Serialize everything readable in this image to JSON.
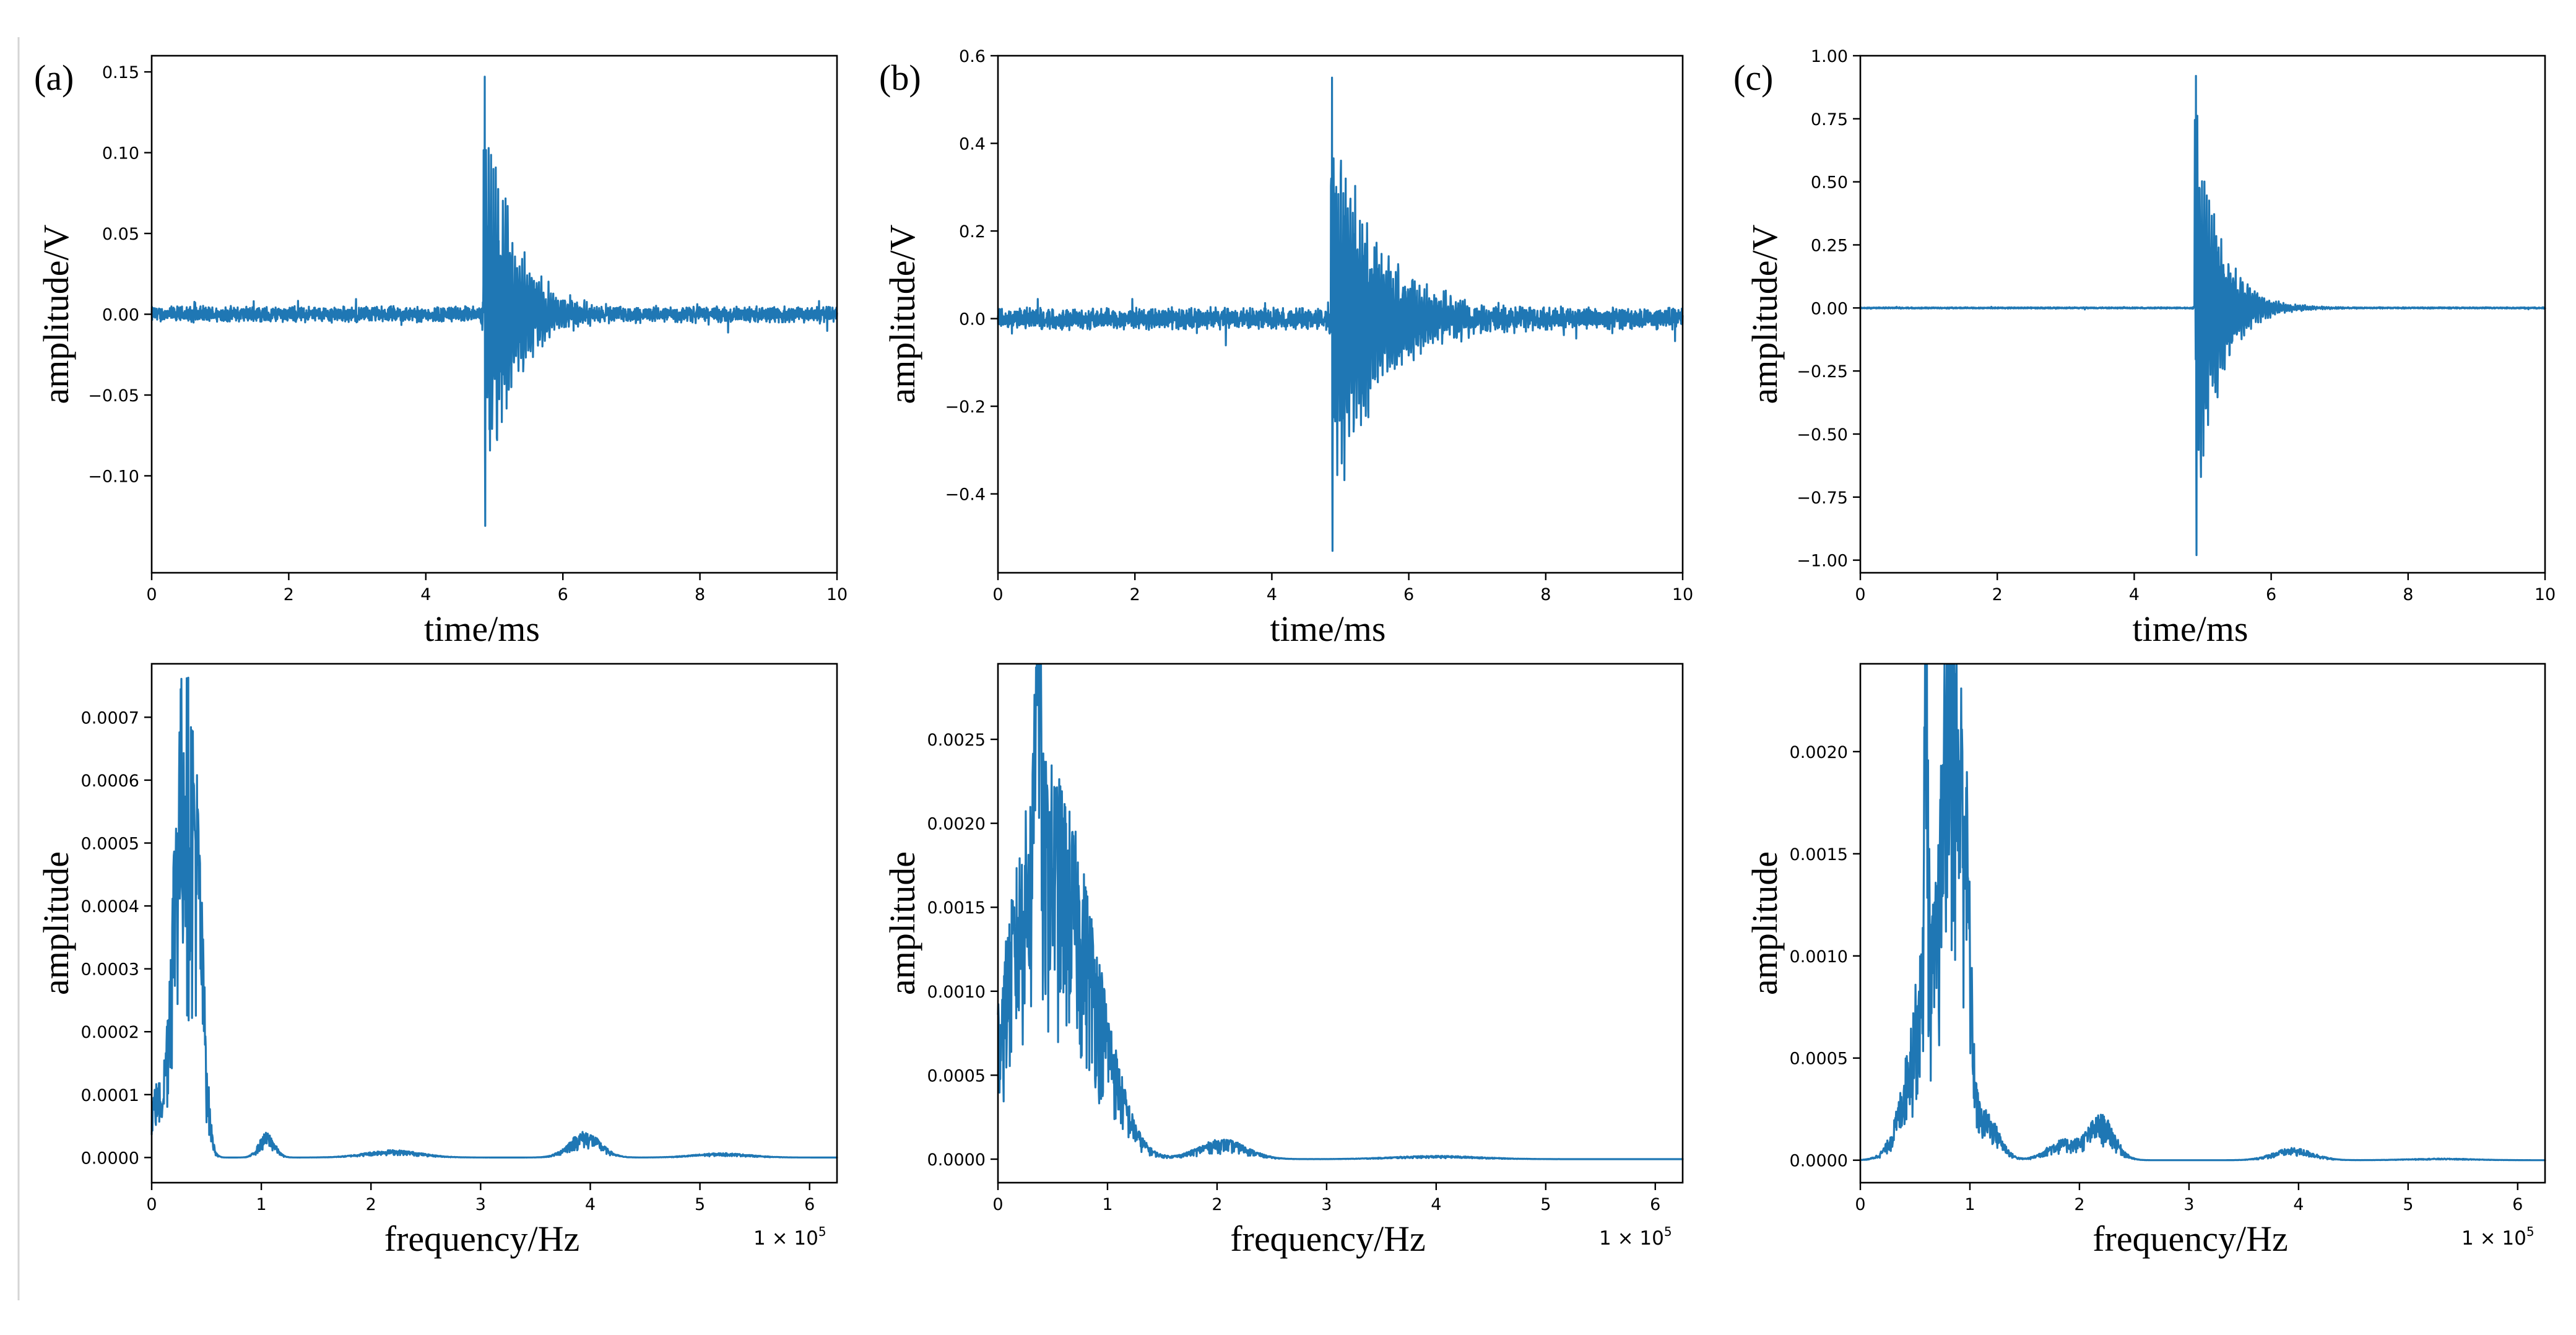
{
  "style": {
    "line_color": "#1f77b4",
    "background": "#ffffff",
    "frame_color": "#000000"
  },
  "chart_data": [
    {
      "id": "a-time",
      "panel_label": "(a)",
      "type": "line",
      "xlabel": "time/ms",
      "ylabel": "amplitude/V",
      "xlim": [
        0,
        10
      ],
      "ylim": [
        -0.16,
        0.16
      ],
      "xticks": [
        0,
        2,
        4,
        6,
        8,
        10
      ],
      "xtick_labels": [
        "0",
        "2",
        "4",
        "6",
        "8",
        "10"
      ],
      "yticks": [
        -0.1,
        -0.05,
        0,
        0.05,
        0.1,
        0.15
      ],
      "ytick_labels": [
        "−0.10",
        "−0.05",
        "0.00",
        "0.05",
        "0.10",
        "0.15"
      ],
      "signal": {
        "kind": "burst",
        "t0": 4.84,
        "peak": 0.147,
        "trough": -0.131,
        "noise": 0.004,
        "decay": 0.45,
        "max_sample": 10
      }
    },
    {
      "id": "b-time",
      "panel_label": "(b)",
      "type": "line",
      "xlabel": "time/ms",
      "ylabel": "amplitude/V",
      "xlim": [
        0,
        10
      ],
      "ylim": [
        -0.58,
        0.6
      ],
      "xticks": [
        0,
        2,
        4,
        6,
        8,
        10
      ],
      "xtick_labels": [
        "0",
        "2",
        "4",
        "6",
        "8",
        "10"
      ],
      "yticks": [
        -0.4,
        -0.2,
        0,
        0.2,
        0.4,
        0.6
      ],
      "ytick_labels": [
        "−0.4",
        "−0.2",
        "0.0",
        "0.2",
        "0.4",
        "0.6"
      ],
      "signal": {
        "kind": "burst",
        "t0": 4.86,
        "peak": 0.55,
        "trough": -0.53,
        "noise": 0.02,
        "decay": 0.7,
        "max_sample": 10
      }
    },
    {
      "id": "c-time",
      "panel_label": "(c)",
      "type": "line",
      "xlabel": "time/ms",
      "ylabel": "amplitude/V",
      "xlim": [
        0,
        10
      ],
      "ylim": [
        -1.05,
        1.0
      ],
      "xticks": [
        0,
        2,
        4,
        6,
        8,
        10
      ],
      "xtick_labels": [
        "0",
        "2",
        "4",
        "6",
        "8",
        "10"
      ],
      "yticks": [
        -1.0,
        -0.75,
        -0.5,
        -0.25,
        0,
        0.25,
        0.5,
        0.75,
        1.0
      ],
      "ytick_labels": [
        "−1.00",
        "−0.75",
        "−0.50",
        "−0.25",
        "0.00",
        "0.25",
        "0.50",
        "0.75",
        "1.00"
      ],
      "signal": {
        "kind": "burst",
        "t0": 4.88,
        "peak": 0.92,
        "trough": -0.98,
        "noise": 0.002,
        "decay": 0.35,
        "max_sample": 10
      }
    },
    {
      "id": "a-freq",
      "type": "line",
      "xlabel": "frequency/Hz",
      "ylabel": "amplitude",
      "x_offset_label": "1 × 10",
      "x_offset_exponent": "5",
      "xlim": [
        0,
        6.25
      ],
      "ylim": [
        -4e-05,
        0.000785
      ],
      "xticks": [
        0,
        1,
        2,
        3,
        4,
        5,
        6
      ],
      "xtick_labels": [
        "0",
        "1",
        "2",
        "3",
        "4",
        "5",
        "6"
      ],
      "yticks": [
        0,
        0.0001,
        0.0002,
        0.0003,
        0.0004,
        0.0005,
        0.0006,
        0.0007
      ],
      "ytick_labels": [
        "0.0000",
        "0.0001",
        "0.0002",
        "0.0003",
        "0.0004",
        "0.0005",
        "0.0006",
        "0.0007"
      ],
      "peaks": [
        {
          "f": 0.28,
          "amp": 0.00076,
          "width": 0.09
        },
        {
          "f": 0.42,
          "amp": 0.00038,
          "width": 0.06
        },
        {
          "f": 0.03,
          "amp": 0.0001,
          "width": 0.05
        },
        {
          "f": 1.05,
          "amp": 4e-05,
          "width": 0.07
        },
        {
          "f": 2.2,
          "amp": 1.2e-05,
          "width": 0.25
        },
        {
          "f": 3.95,
          "amp": 4.2e-05,
          "width": 0.14
        },
        {
          "f": 5.2,
          "amp": 7e-06,
          "width": 0.25
        }
      ]
    },
    {
      "id": "b-freq",
      "type": "line",
      "xlabel": "frequency/Hz",
      "ylabel": "amplitude",
      "x_offset_label": "1 × 10",
      "x_offset_exponent": "5",
      "xlim": [
        0,
        6.25
      ],
      "ylim": [
        -0.00014,
        0.00295
      ],
      "xticks": [
        0,
        1,
        2,
        3,
        4,
        5,
        6
      ],
      "xtick_labels": [
        "0",
        "1",
        "2",
        "3",
        "4",
        "5",
        "6"
      ],
      "yticks": [
        0,
        0.0005,
        0.001,
        0.0015,
        0.002,
        0.0025
      ],
      "ytick_labels": [
        "0.0000",
        "0.0005",
        "0.0010",
        "0.0015",
        "0.0020",
        "0.0025"
      ],
      "peaks": [
        {
          "f": 0.35,
          "amp": 0.0021,
          "width": 0.28
        },
        {
          "f": 0.8,
          "amp": 0.0011,
          "width": 0.25
        },
        {
          "f": 0.36,
          "amp": 0.0028,
          "width": 0.02
        },
        {
          "f": 2.05,
          "amp": 0.00012,
          "width": 0.22
        },
        {
          "f": 4.0,
          "amp": 2e-05,
          "width": 0.4
        }
      ]
    },
    {
      "id": "c-freq",
      "type": "line",
      "xlabel": "frequency/Hz",
      "ylabel": "amplitude",
      "x_offset_label": "1 × 10",
      "x_offset_exponent": "5",
      "xlim": [
        0,
        6.25
      ],
      "ylim": [
        -0.00011,
        0.00243
      ],
      "xticks": [
        0,
        1,
        2,
        3,
        4,
        5,
        6
      ],
      "xtick_labels": [
        "0",
        "1",
        "2",
        "3",
        "4",
        "5",
        "6"
      ],
      "yticks": [
        0,
        0.0005,
        0.001,
        0.0015,
        0.002
      ],
      "ytick_labels": [
        "0.0000",
        "0.0005",
        "0.0010",
        "0.0015",
        "0.0020"
      ],
      "peaks": [
        {
          "f": 0.65,
          "amp": 0.0012,
          "width": 0.18
        },
        {
          "f": 0.82,
          "amp": 0.0023,
          "width": 0.06
        },
        {
          "f": 0.95,
          "amp": 0.0017,
          "width": 0.05
        },
        {
          "f": 0.6,
          "amp": 0.0021,
          "width": 0.015
        },
        {
          "f": 1.15,
          "amp": 0.00022,
          "width": 0.12
        },
        {
          "f": 1.85,
          "amp": 0.0001,
          "width": 0.15
        },
        {
          "f": 2.2,
          "amp": 0.00022,
          "width": 0.12
        },
        {
          "f": 3.95,
          "amp": 6e-05,
          "width": 0.18
        },
        {
          "f": 5.3,
          "amp": 8e-06,
          "width": 0.3
        }
      ]
    }
  ]
}
